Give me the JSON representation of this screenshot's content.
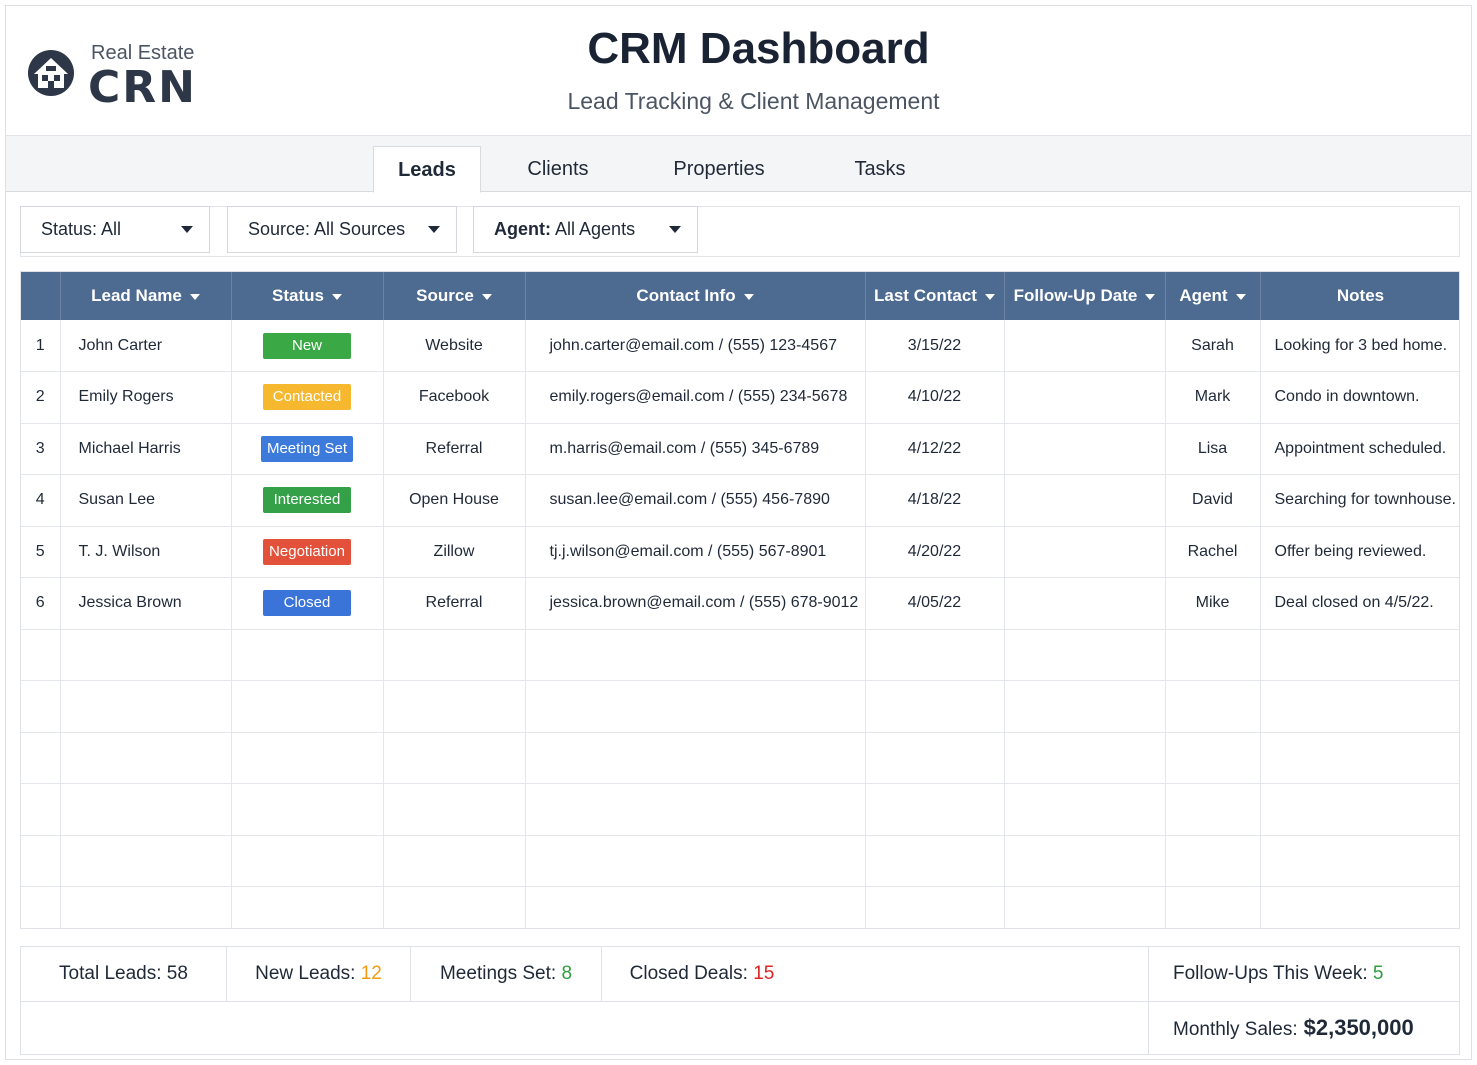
{
  "logo": {
    "small_text": "Real Estate",
    "big_text": "CRN"
  },
  "header": {
    "title": "CRM Dashboard",
    "subtitle": "Lead Tracking & Client Management"
  },
  "tabs": [
    {
      "label": "Leads",
      "active": true
    },
    {
      "label": "Clients",
      "active": false
    },
    {
      "label": "Properties",
      "active": false
    },
    {
      "label": "Tasks",
      "active": false
    }
  ],
  "filters": {
    "status": "Status: All",
    "source": "Source: All Sources",
    "agent_label": "Agent:",
    "agent_value": "All Agents"
  },
  "table": {
    "columns": [
      "",
      "Lead Name",
      "Status",
      "Source",
      "Contact Info",
      "Last Contact",
      "Follow-Up Date",
      "Agent",
      "Notes"
    ],
    "rows": [
      {
        "num": "1",
        "name": "John Carter",
        "status": "New",
        "status_color": "#3aa845",
        "source": "Website",
        "contact": "john.carter@email.com / (555) 123-4567",
        "last_contact": "3/15/22",
        "follow_up": "",
        "agent": "Sarah",
        "notes": "Looking for 3 bed home."
      },
      {
        "num": "2",
        "name": "Emily Rogers",
        "status": "Contacted",
        "status_color": "#f5b82e",
        "source": "Facebook",
        "contact": "emily.rogers@email.com / (555) 234-5678",
        "last_contact": "4/10/22",
        "follow_up": "",
        "agent": "Mark",
        "notes": "Condo in downtown."
      },
      {
        "num": "3",
        "name": "Michael Harris",
        "status": "Meeting Set",
        "status_color": "#3c7bdc",
        "source": "Referral",
        "contact": "m.harris@email.com / (555) 345-6789",
        "last_contact": "4/12/22",
        "follow_up": "",
        "agent": "Lisa",
        "notes": "Appointment scheduled."
      },
      {
        "num": "4",
        "name": "Susan Lee",
        "status": "Interested",
        "status_color": "#34a048",
        "source": "Open House",
        "contact": "susan.lee@email.com / (555) 456-7890",
        "last_contact": "4/18/22",
        "follow_up": "",
        "agent": "David",
        "notes": "Searching for townhouse."
      },
      {
        "num": "5",
        "name": "T. J. Wilson",
        "status": "Negotiation",
        "status_color": "#e4513a",
        "source": "Zillow",
        "contact": "tj.j.wilson@email.com / (555) 567-8901",
        "last_contact": "4/20/22",
        "follow_up": "",
        "agent": "Rachel",
        "notes": "Offer being reviewed."
      },
      {
        "num": "6",
        "name": "Jessica Brown",
        "status": "Closed",
        "status_color": "#3a74d8",
        "source": "Referral",
        "contact": "jessica.brown@email.com / (555) 678-9012",
        "last_contact": "4/05/22",
        "follow_up": "",
        "agent": "Mike",
        "notes": "Deal closed on 4/5/22."
      }
    ]
  },
  "summary": {
    "total_leads_label": "Total Leads:",
    "total_leads_value": "58",
    "new_leads_label": "New Leads:",
    "new_leads_value": "12",
    "meetings_label": "Meetings Set:",
    "meetings_value": "8",
    "closed_label": "Closed Deals:",
    "closed_value": "15",
    "followups_label": "Follow-Ups This Week:",
    "followups_value": "5",
    "monthly_sales_label": "Monthly Sales:",
    "monthly_sales_value": "$2,350,000"
  },
  "colors": {
    "header_bg": "#4d6a90",
    "accent_orange": "#f39c12",
    "accent_green": "#2e9e3e",
    "accent_red": "#e02424"
  }
}
